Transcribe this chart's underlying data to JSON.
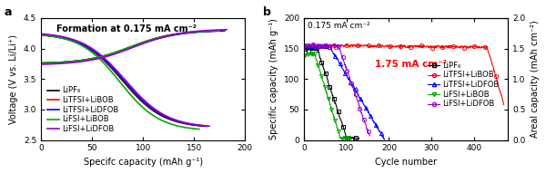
{
  "panel_a": {
    "title": "Formation at 0.175 mA cm⁻²",
    "xlabel": "Specifc capacity (mAh g⁻¹)",
    "ylabel": "Voltage (V vs. Li/Li⁺)",
    "xlim": [
      0,
      200
    ],
    "ylim": [
      2.5,
      4.5
    ],
    "yticks": [
      2.5,
      3.0,
      3.5,
      4.0,
      4.5
    ],
    "xticks": [
      0,
      50,
      100,
      150,
      200
    ],
    "series": [
      {
        "label": "LiPF₆",
        "color": "#000000"
      },
      {
        "label": "LiTFSI+LiBOB",
        "color": "#ff0000"
      },
      {
        "label": "LiTFSI+LiDFOB",
        "color": "#0000ff"
      },
      {
        "label": "LiFSI+LiBOB",
        "color": "#00aa00"
      },
      {
        "label": "LiFSI+LiDFOB",
        "color": "#9900cc"
      }
    ]
  },
  "panel_b": {
    "annotation": "1.75 mA cm⁻²",
    "annotation2": "0.175 mA cm⁻²",
    "xlabel": "Cycle number",
    "ylabel_left": "Specific capacity (mAh g⁻¹)",
    "ylabel_right": "Areal capacity (mAh cm⁻²)",
    "xlim": [
      0,
      480
    ],
    "ylim_left": [
      0,
      200
    ],
    "ylim_right": [
      0,
      2.0
    ],
    "yticks_left": [
      0,
      50,
      100,
      150,
      200
    ],
    "yticks_right": [
      0.0,
      0.5,
      1.0,
      1.5,
      2.0
    ],
    "xticks": [
      0,
      100,
      200,
      300,
      400
    ],
    "series": [
      {
        "label": "LiPF₆",
        "color": "#000000",
        "marker": "s"
      },
      {
        "label": "LiTFSI+LiBOB",
        "color": "#ff0000",
        "marker": "o"
      },
      {
        "label": "LiTFSI+LiDFOB",
        "color": "#0000ff",
        "marker": "^"
      },
      {
        "label": "LiFSI+LiBOB",
        "color": "#00aa00",
        "marker": "v"
      },
      {
        "label": "LiFSI+LiDFOB",
        "color": "#9900cc",
        "marker": "o"
      }
    ]
  },
  "background_color": "#ffffff",
  "label_fontsize": 7,
  "tick_fontsize": 6.5,
  "legend_fontsize": 6,
  "annotation_fontsize": 7
}
